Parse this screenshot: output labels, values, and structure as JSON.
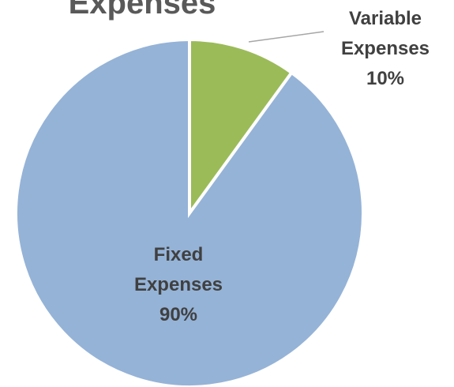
{
  "chart_data": {
    "type": "pie",
    "title": "Expenses",
    "categories": [
      "Variable Expenses",
      "Fixed Expenses"
    ],
    "values": [
      10,
      90
    ],
    "value_labels": [
      "10%",
      "90%"
    ],
    "colors": [
      "#9bbb59",
      "#95b3d7"
    ]
  }
}
